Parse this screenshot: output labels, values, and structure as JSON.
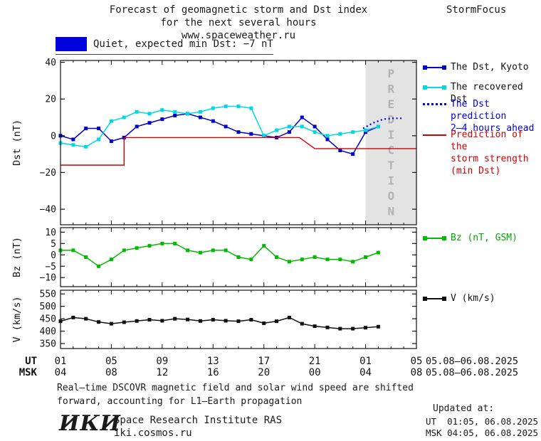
{
  "header": {
    "title_line1": "Forecast of geomagnetic storm and Dst index",
    "title_line2": "for the next several hours",
    "title_line3": "www.spaceweather.ru",
    "brand": "StormFocus"
  },
  "status": {
    "label": "Quiet, expected min Dst: −7 nT",
    "swatch_color": "#0000dd"
  },
  "colors": {
    "dst_kyoto_blue": "#0000cc",
    "recovered_cyan": "#00d8e4",
    "prediction_blue": "#0000dd",
    "storm_red": "#d40000",
    "bz_green": "#00bb00",
    "v_black": "#111111",
    "band": "#e3e3e3",
    "band_text": "#b3b3b3"
  },
  "legend": {
    "items": [
      {
        "id": "dst-kyoto",
        "label": "The Dst, Kyoto",
        "color": "#0000cc",
        "text_color": "#111111",
        "style": "squares"
      },
      {
        "id": "recovered-dst",
        "label": "The recovered Dst",
        "color": "#00d8e4",
        "text_color": "#111111",
        "style": "squares"
      },
      {
        "id": "dst-prediction",
        "label": "The Dst prediction\n2–4 hours ahead",
        "color": "#0000dd",
        "text_color": "#0000dd",
        "style": "dotted"
      },
      {
        "id": "storm-strength",
        "label": "Prediction of the\nstorm strength\n(min Dst)",
        "color": "#d40000",
        "text_color": "#d40000",
        "style": "plain"
      },
      {
        "id": "bz",
        "label": "Bz (nT, GSM)",
        "color": "#00bb00",
        "text_color": "#00aa00",
        "style": "squares"
      },
      {
        "id": "v",
        "label": "V (km/s)",
        "color": "#111111",
        "text_color": "#111111",
        "style": "squares"
      }
    ]
  },
  "time_axis": {
    "xlim": [
      1,
      29
    ],
    "ticks": [
      {
        "x": 1,
        "ut": "01",
        "msk": "04"
      },
      {
        "x": 5,
        "ut": "05",
        "msk": "08"
      },
      {
        "x": 9,
        "ut": "09",
        "msk": "12"
      },
      {
        "x": 13,
        "ut": "13",
        "msk": "16"
      },
      {
        "x": 17,
        "ut": "17",
        "msk": "20"
      },
      {
        "x": 21,
        "ut": "21",
        "msk": "00"
      },
      {
        "x": 25,
        "ut": "01",
        "msk": "04"
      },
      {
        "x": 29,
        "ut": "05",
        "msk": "08"
      }
    ],
    "ut_label": "UT",
    "msk_label": "MSK",
    "date_range_ut": "05.08–06.08.2025",
    "date_range_msk": "05.08–06.08.2025"
  },
  "chart_data": [
    {
      "type": "line",
      "ylabel": "Dst (nT)",
      "ylim": [
        -48.5,
        41
      ],
      "yticks": [
        40,
        20,
        0,
        -20,
        -40
      ],
      "prediction_band": {
        "x_start": 25,
        "x_end": 29,
        "label": "PREDICTION"
      },
      "series": [
        {
          "name": "The Dst, Kyoto",
          "color": "#0000cc",
          "marker": "square",
          "width": 1.5,
          "x": [
            1,
            2,
            3,
            4,
            5,
            6,
            7,
            8,
            9,
            10,
            11,
            12,
            13,
            14,
            15,
            16,
            17,
            18,
            19,
            20,
            21,
            22,
            23,
            24,
            25,
            26
          ],
          "values": [
            0,
            -2,
            4,
            4,
            -3,
            -1,
            5,
            7,
            9,
            11,
            12,
            10,
            8,
            5,
            2,
            1,
            0,
            -1,
            2,
            10,
            5,
            -2,
            -8,
            -10,
            2,
            5
          ]
        },
        {
          "name": "The recovered Dst",
          "color": "#00d8e4",
          "marker": "square",
          "width": 1.5,
          "x": [
            1,
            2,
            3,
            4,
            5,
            6,
            7,
            8,
            9,
            10,
            11,
            12,
            13,
            14,
            15,
            16,
            17,
            18,
            19,
            20,
            21,
            22,
            23,
            24,
            25,
            26
          ],
          "values": [
            -4,
            -5,
            -6,
            -2,
            8,
            10,
            13,
            12,
            14,
            13,
            12,
            13,
            15,
            16,
            16,
            15,
            0,
            3,
            5,
            5,
            2,
            0,
            1,
            2,
            3,
            5
          ]
        },
        {
          "name": "The Dst prediction 2–4 hours ahead",
          "color": "#0000dd",
          "style": "dotted",
          "width": 2.2,
          "x": [
            24.8,
            25.6,
            26.4,
            27.2,
            28
          ],
          "values": [
            4,
            7,
            9,
            9.5,
            9.5
          ]
        },
        {
          "name": "Prediction of the storm strength (min Dst)",
          "color": "#d40000",
          "style": "step",
          "width": 1.4,
          "x": [
            1,
            6,
            6,
            19.8,
            21,
            29
          ],
          "values": [
            -16,
            -16,
            -1,
            -1,
            -7,
            -7
          ]
        }
      ]
    },
    {
      "type": "line",
      "ylabel": "Bz (nT)",
      "ylim": [
        -14,
        12
      ],
      "yticks": [
        10,
        5,
        0,
        -5,
        -10
      ],
      "series": [
        {
          "name": "Bz (nT, GSM)",
          "color": "#00bb00",
          "marker": "square",
          "width": 1.5,
          "x": [
            1,
            2,
            3,
            4,
            5,
            6,
            7,
            8,
            9,
            10,
            11,
            12,
            13,
            14,
            15,
            16,
            17,
            18,
            19,
            20,
            21,
            22,
            23,
            24,
            25,
            26
          ],
          "values": [
            2,
            2,
            -1,
            -5,
            -2,
            2,
            3,
            4,
            5,
            5,
            2,
            1,
            2,
            2,
            -1,
            -2,
            4,
            -1,
            -3,
            -2,
            -1,
            -2,
            -2,
            -3,
            -1,
            1
          ]
        }
      ]
    },
    {
      "type": "line",
      "ylabel": "V (km/s)",
      "ylim": [
        330,
        565
      ],
      "yticks": [
        550,
        500,
        450,
        400,
        350
      ],
      "series": [
        {
          "name": "V (km/s)",
          "color": "#111111",
          "marker": "square",
          "width": 1.5,
          "x": [
            1,
            2,
            3,
            4,
            5,
            6,
            7,
            8,
            9,
            10,
            11,
            12,
            13,
            14,
            15,
            16,
            17,
            18,
            19,
            20,
            21,
            22,
            23,
            24,
            25,
            26
          ],
          "values": [
            440,
            455,
            450,
            437,
            430,
            436,
            441,
            446,
            442,
            450,
            447,
            441,
            446,
            442,
            440,
            446,
            432,
            440,
            455,
            430,
            420,
            415,
            410,
            410,
            414,
            418
          ]
        }
      ]
    }
  ],
  "footer": {
    "note_line1": "Real–time DSCOVR magnetic field and solar wind speed are shifted",
    "note_line2": "forward, accounting for L1–Earth propagation",
    "updated_label": "Updated at:",
    "updated_ut": "UT  01:05, 06.08.2025",
    "updated_msk": "MSK 04:05, 06.08.2025",
    "logo": "ИКИ",
    "institute": "Space Research Institute RAS",
    "website": "iki.cosmos.ru"
  }
}
